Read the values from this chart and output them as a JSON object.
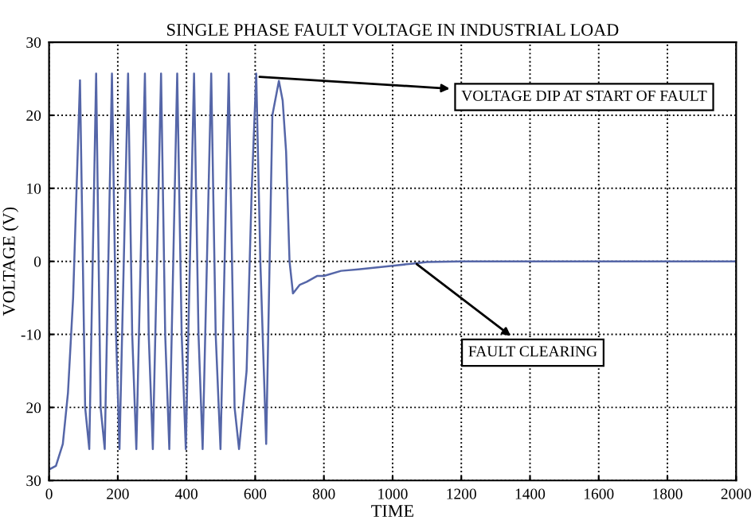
{
  "chart_data": {
    "type": "line",
    "title": "SINGLE PHASE FAULT VOLTAGE IN INDUSTRIAL LOAD",
    "xlabel": "TIME",
    "ylabel": "VOLTAGE (V)",
    "series": [
      {
        "color": "#5566a8",
        "x": [
          0,
          20,
          40,
          55,
          70,
          90,
          105,
          117,
          137,
          150,
          162,
          183,
          195,
          205,
          230,
          242,
          254,
          279,
          290,
          302,
          326,
          338,
          350,
          373,
          386,
          398,
          422,
          435,
          447,
          472,
          485,
          499,
          523,
          540,
          553,
          575,
          590,
          603,
          615,
          632,
          650,
          669,
          680,
          690,
          700,
          710,
          730,
          750,
          780,
          800,
          850,
          900,
          1000,
          1060,
          1100,
          1200,
          1350,
          2000
        ],
        "values": [
          -28.5,
          -28,
          -25,
          -18,
          -5,
          24.8,
          -20,
          -25.7,
          25.7,
          -20,
          -25.7,
          25.7,
          -10,
          -25.7,
          25.7,
          -10,
          -25.7,
          25.7,
          -10,
          -25.7,
          25.7,
          -10,
          -25.7,
          25.7,
          -10,
          -25.7,
          25.7,
          -10,
          -25.7,
          25.7,
          -10,
          -25.7,
          25.7,
          -20,
          -25.7,
          -15,
          10,
          25.7,
          0,
          -25,
          20,
          24.7,
          22,
          15,
          0,
          -4.4,
          -3.2,
          -2.8,
          -2,
          -2,
          -1.3,
          -1.1,
          -0.6,
          -0.3,
          -0.1,
          0,
          0,
          0
        ]
      }
    ],
    "xlim": [
      0,
      2000
    ],
    "xticks": [
      0,
      200,
      400,
      600,
      800,
      1000,
      1200,
      1400,
      1600,
      1800,
      2000
    ],
    "ylim": [
      -30,
      30
    ],
    "yticks": [
      {
        "value": -30,
        "label": "30"
      },
      {
        "value": -20,
        "label": "20"
      },
      -10,
      0,
      10,
      20,
      30
    ],
    "grid": true,
    "line_style": "solid",
    "annotations": [
      {
        "text": "VOLTAGE DIP AT START OF FAULT",
        "x": 600,
        "y": 25.3
      },
      {
        "text": "FAULT CLEARING",
        "x": 1060,
        "y": 0
      }
    ]
  }
}
